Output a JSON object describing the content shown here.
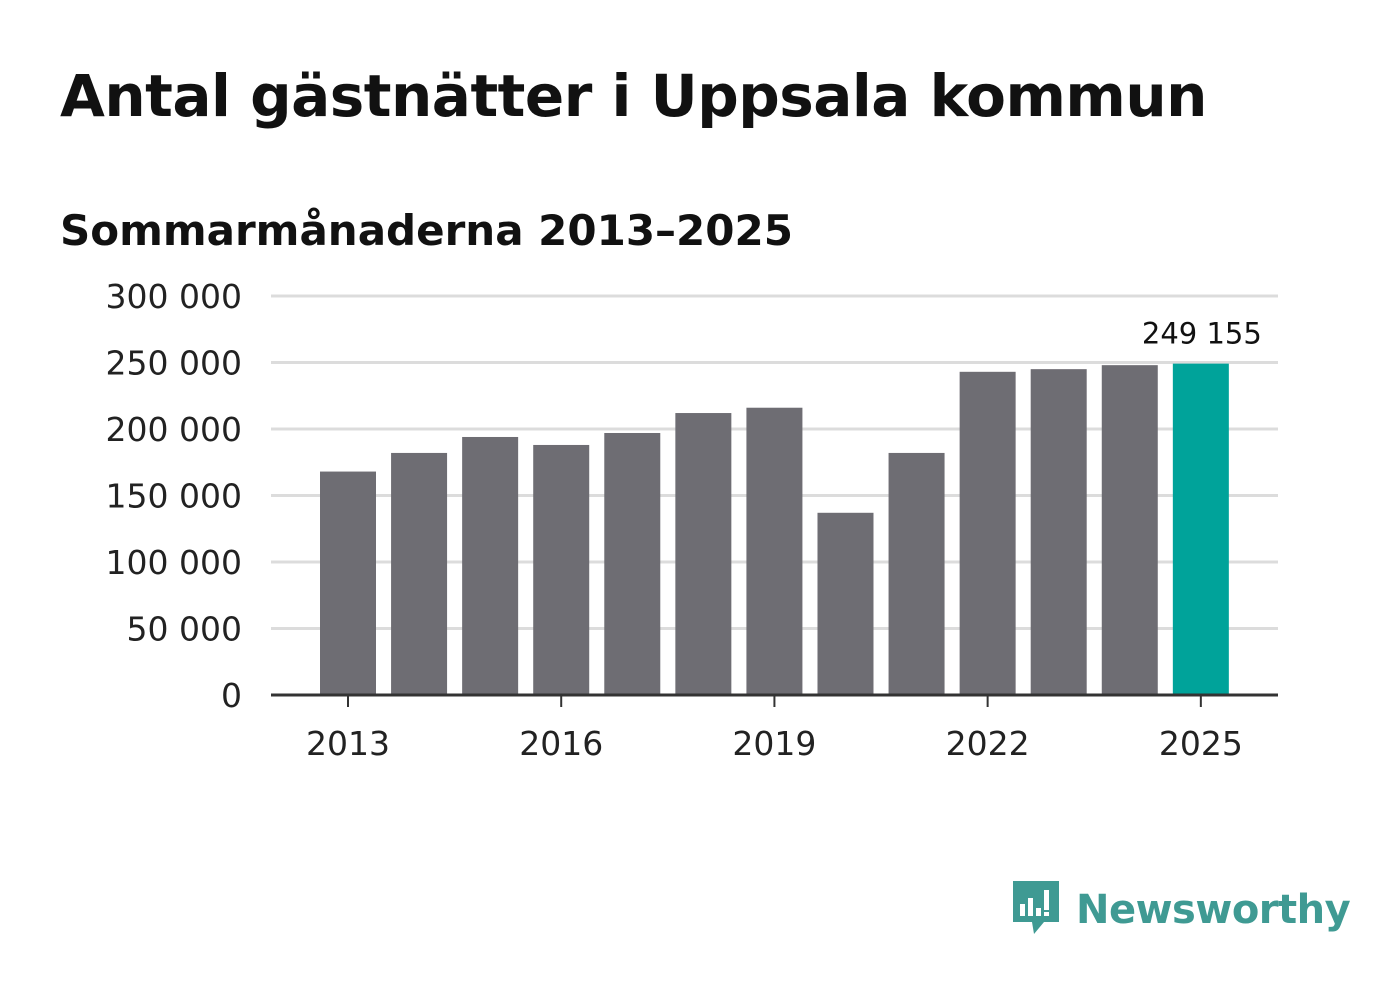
{
  "title": "Antal gästnätter i Uppsala kommun",
  "subtitle": "Sommarmånaderna 2013–2025",
  "brand": {
    "name": "Newsworthy",
    "icon": "newsworthy-logo-icon",
    "color": "#3f9a93"
  },
  "colors": {
    "bar": "#6e6d73",
    "highlight": "#00a39a",
    "grid": "#dcdcdc",
    "axis": "#333333"
  },
  "chart_data": {
    "type": "bar",
    "categories": [
      "2013",
      "2014",
      "2015",
      "2016",
      "2017",
      "2018",
      "2019",
      "2020",
      "2021",
      "2022",
      "2023",
      "2024",
      "2025"
    ],
    "values": [
      168000,
      182000,
      194000,
      188000,
      197000,
      212000,
      216000,
      137000,
      182000,
      243000,
      245000,
      248000,
      249155
    ],
    "highlight_index": 12,
    "data_label": {
      "index": 12,
      "text": "249 155"
    },
    "ylim": [
      0,
      300000
    ],
    "yticks": [
      0,
      50000,
      100000,
      150000,
      200000,
      250000,
      300000
    ],
    "ytick_labels": [
      "0",
      "50 000",
      "100 000",
      "150 000",
      "200 000",
      "250 000",
      "300 000"
    ],
    "xtick_labels": [
      "2013",
      "2016",
      "2019",
      "2022",
      "2025"
    ],
    "grid": true,
    "legend": "none"
  }
}
